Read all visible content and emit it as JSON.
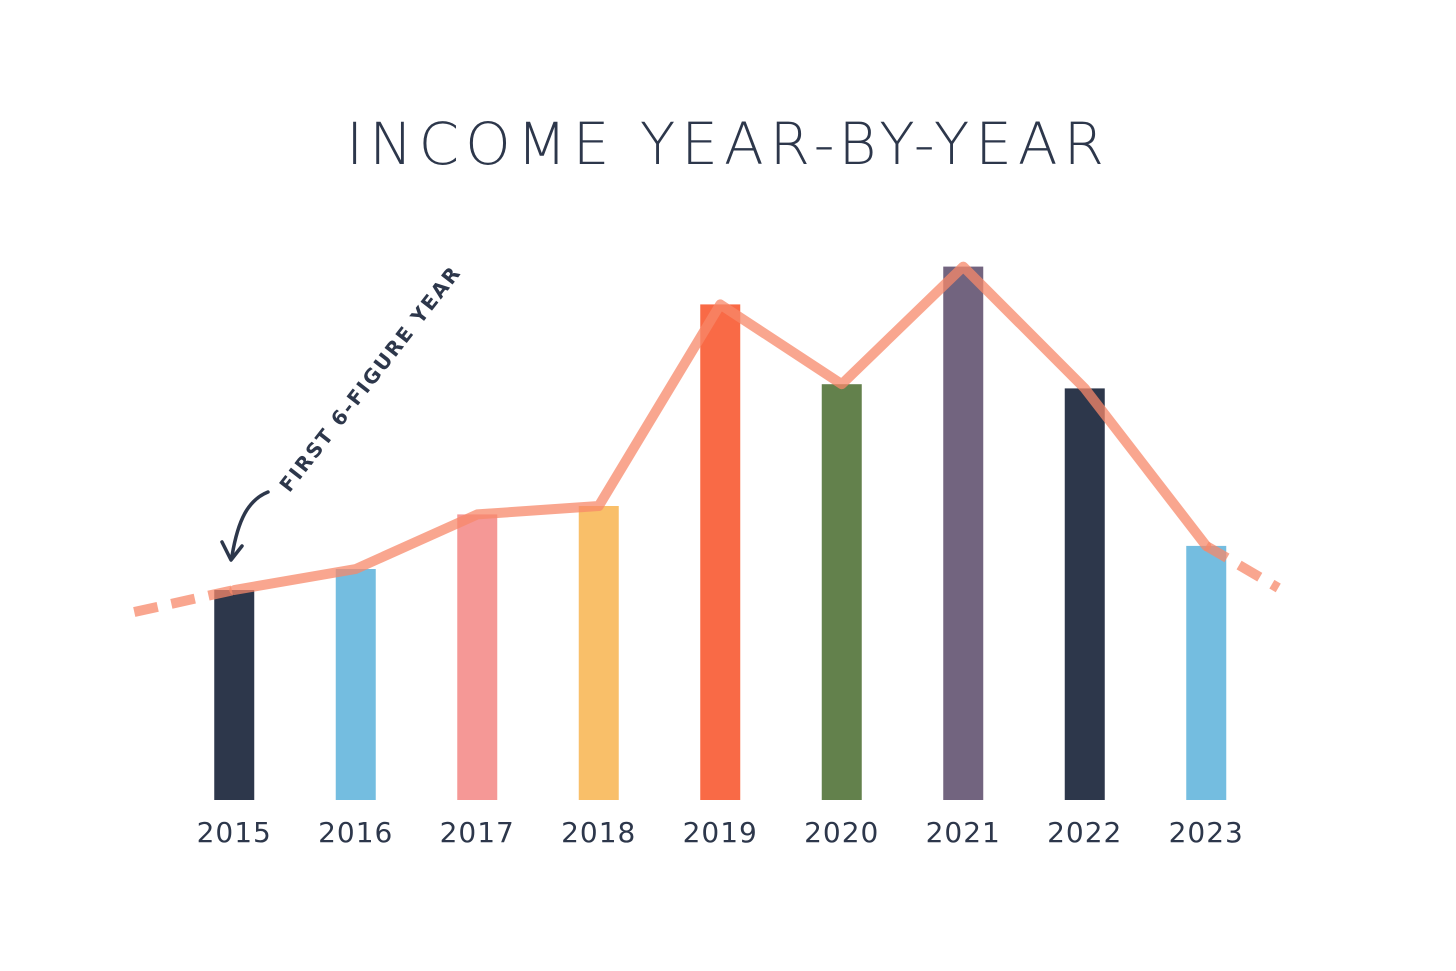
{
  "chart_data": {
    "type": "bar",
    "title": "INCOME YEAR-BY-YEAR",
    "annotation": "FIRST 6-FIGURE YEAR",
    "categories": [
      "2015",
      "2016",
      "2017",
      "2018",
      "2019",
      "2020",
      "2021",
      "2022",
      "2023"
    ],
    "values": [
      100,
      110,
      136,
      140,
      236,
      198,
      254,
      196,
      121
    ],
    "colors": [
      "#2d374b",
      "#74bde0",
      "#f59896",
      "#f9bf69",
      "#f96a46",
      "#63814c",
      "#72647f",
      "#2d374b",
      "#74bde0"
    ],
    "trend_line": true,
    "trend_line_color": "#f7886a",
    "ylim": [
      0,
      300
    ]
  }
}
